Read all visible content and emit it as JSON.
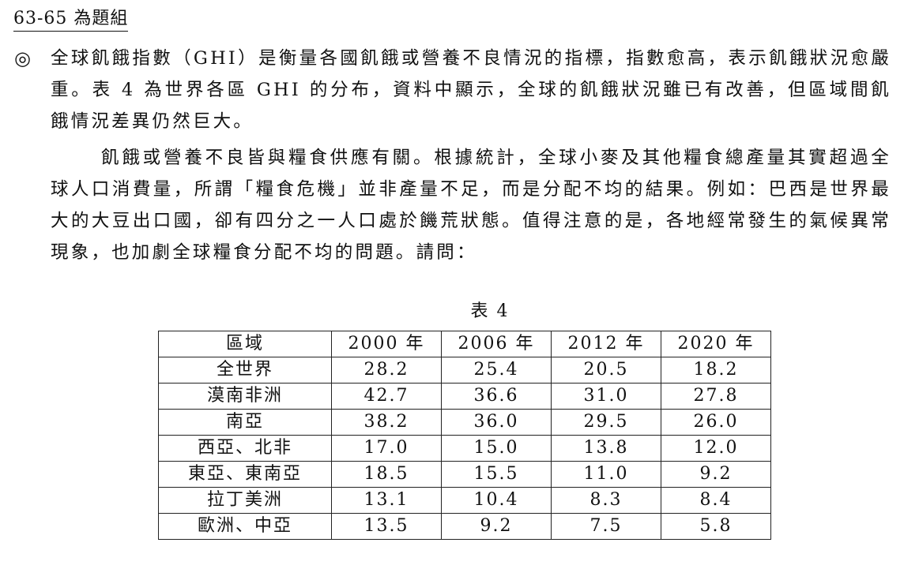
{
  "group_title": "63-65 為題組",
  "marker_icon": "double-circle-icon",
  "paragraph1": "全球飢餓指數（GHI）是衡量各國飢餓或營養不良情況的指標，指數愈高，表示飢餓狀況愈嚴重。表 4 為世界各區 GHI 的分布，資料中顯示，全球的飢餓狀況雖已有改善，但區域間飢餓情況差異仍然巨大。",
  "paragraph2": "飢餓或營養不良皆與糧食供應有關。根據統計，全球小麥及其他糧食總產量其實超過全球人口消費量，所謂「糧食危機」並非產量不足，而是分配不均的結果。例如：巴西是世界最大的大豆出口國，卻有四分之一人口處於饑荒狀態。值得注意的是，各地經常發生的氣候異常現象，也加劇全球糧食分配不均的問題。請問：",
  "table": {
    "caption": "表 4",
    "headers": [
      "區域",
      "2000 年",
      "2006 年",
      "2012 年",
      "2020 年"
    ],
    "rows": [
      [
        "全世界",
        "28.2",
        "25.4",
        "20.5",
        "18.2"
      ],
      [
        "漠南非洲",
        "42.7",
        "36.6",
        "31.0",
        "27.8"
      ],
      [
        "南亞",
        "38.2",
        "36.0",
        "29.5",
        "26.0"
      ],
      [
        "西亞、北非",
        "17.0",
        "15.0",
        "13.8",
        "12.0"
      ],
      [
        "東亞、東南亞",
        "18.5",
        "15.5",
        "11.0",
        "9.2"
      ],
      [
        "拉丁美洲",
        "13.1",
        "10.4",
        "8.3",
        "8.4"
      ],
      [
        "歐洲、中亞",
        "13.5",
        "9.2",
        "7.5",
        "5.8"
      ]
    ]
  }
}
